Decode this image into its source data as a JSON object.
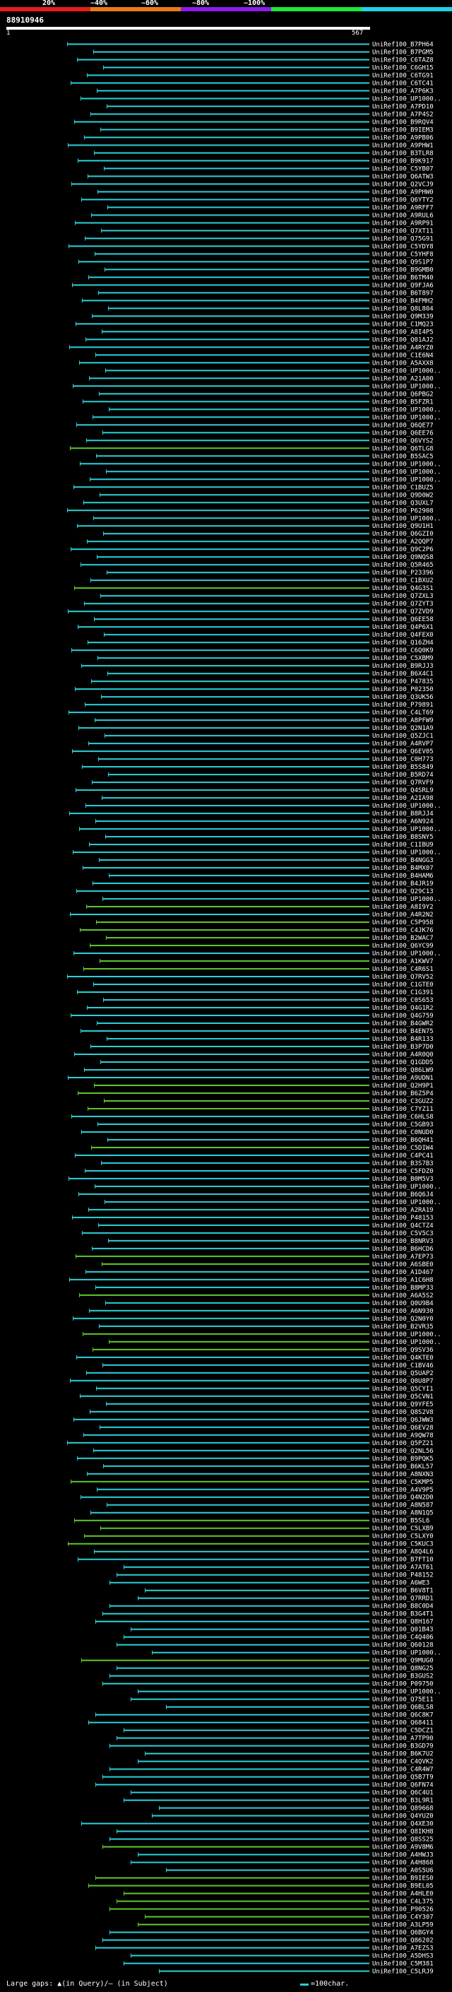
{
  "scale": {
    "labels": [
      "20%",
      "~40%",
      "~60%",
      "~80%",
      "~100%"
    ],
    "colors": [
      "#e81c1c",
      "#e87a1c",
      "#8c1ce8",
      "#1ce83a",
      "#1cd4e8"
    ]
  },
  "query": {
    "id": "88910946",
    "start": "1",
    "end": "567"
  },
  "hit_colors": {
    "cyan": "#2bd1d8",
    "green": "#5ec92a",
    "navy": "#1e2c7a"
  },
  "hits": [
    {
      "label": "UniRef100_B7PH64",
      "color": "cyan"
    },
    {
      "label": "UniRef100_B7PGM5",
      "color": "cyan"
    },
    {
      "label": "UniRef100_C6TAZ8",
      "color": "cyan"
    },
    {
      "label": "UniRef100_C6GH15",
      "color": "cyan"
    },
    {
      "label": "UniRef100_C6TG91",
      "color": "cyan"
    },
    {
      "label": "UniRef100_C6TC41",
      "color": "cyan"
    },
    {
      "label": "UniRef100_A7P6K3",
      "color": "cyan"
    },
    {
      "label": "UniRef100_UP1000..",
      "color": "cyan"
    },
    {
      "label": "UniRef100_A7PD10",
      "color": "cyan"
    },
    {
      "label": "UniRef100_A7P4S2",
      "color": "cyan"
    },
    {
      "label": "UniRef100_B9RQV4",
      "color": "cyan"
    },
    {
      "label": "UniRef100_B9IEM3",
      "color": "cyan"
    },
    {
      "label": "UniRef100_A9PB06",
      "color": "cyan"
    },
    {
      "label": "UniRef100_A9PHW1",
      "color": "cyan"
    },
    {
      "label": "UniRef100_B3TLR8",
      "color": "cyan"
    },
    {
      "label": "UniRef100_B9K917",
      "color": "cyan"
    },
    {
      "label": "UniRef100_C5YB07",
      "color": "cyan"
    },
    {
      "label": "UniRef100_Q6ATW3",
      "color": "cyan"
    },
    {
      "label": "UniRef100_Q2VCJ9",
      "color": "cyan"
    },
    {
      "label": "UniRef100_A9PHW0",
      "color": "cyan"
    },
    {
      "label": "UniRef100_Q6YTY2",
      "color": "cyan"
    },
    {
      "label": "UniRef100_A9RFF7",
      "color": "cyan"
    },
    {
      "label": "UniRef100_A9RUL6",
      "color": "cyan"
    },
    {
      "label": "UniRef100_A9RP91",
      "color": "cyan"
    },
    {
      "label": "UniRef100_Q7XT11",
      "color": "cyan"
    },
    {
      "label": "UniRef100_Q75G91",
      "color": "cyan"
    },
    {
      "label": "UniRef100_C5YDY8",
      "color": "cyan"
    },
    {
      "label": "UniRef100_C5YHF8",
      "color": "cyan"
    },
    {
      "label": "UniRef100_Q9S1P7",
      "color": "cyan"
    },
    {
      "label": "UniRef100_B9GMB0",
      "color": "cyan"
    },
    {
      "label": "UniRef100_B6TM40",
      "color": "cyan"
    },
    {
      "label": "UniRef100_Q9FJA6",
      "color": "cyan"
    },
    {
      "label": "UniRef100_B6T897",
      "color": "cyan"
    },
    {
      "label": "UniRef100_B4FMH2",
      "color": "cyan"
    },
    {
      "label": "UniRef100_Q8L804",
      "color": "cyan"
    },
    {
      "label": "UniRef100_Q9M339",
      "color": "cyan"
    },
    {
      "label": "UniRef100_C1MQ23",
      "color": "cyan"
    },
    {
      "label": "UniRef100_A8I4P5",
      "color": "cyan"
    },
    {
      "label": "UniRef100_Q01AJ2",
      "color": "cyan"
    },
    {
      "label": "UniRef100_A4RYZ0",
      "color": "cyan"
    },
    {
      "label": "UniRef100_C1E6N4",
      "color": "cyan"
    },
    {
      "label": "UniRef100_A5AXX8",
      "color": "cyan"
    },
    {
      "label": "UniRef100_UP1000..",
      "color": "cyan"
    },
    {
      "label": "UniRef100_A21A00",
      "color": "cyan"
    },
    {
      "label": "UniRef100_UP1000..",
      "color": "cyan"
    },
    {
      "label": "UniRef100_Q6PBG2",
      "color": "cyan"
    },
    {
      "label": "UniRef100_B5FZR1",
      "color": "cyan"
    },
    {
      "label": "UniRef100_UP1000..",
      "color": "cyan"
    },
    {
      "label": "UniRef100_UP1000..",
      "color": "cyan"
    },
    {
      "label": "UniRef100_Q6QE77",
      "color": "cyan"
    },
    {
      "label": "UniRef100_Q6EE76",
      "color": "cyan"
    },
    {
      "label": "UniRef100_Q6VYS2",
      "color": "cyan"
    },
    {
      "label": "UniRef100_Q6TLG8",
      "color": "green"
    },
    {
      "label": "UniRef100_B5SAC5",
      "color": "cyan"
    },
    {
      "label": "UniRef100_UP1000..",
      "color": "cyan"
    },
    {
      "label": "UniRef100_UP1000..",
      "color": "cyan"
    },
    {
      "label": "UniRef100_UP1000..",
      "color": "cyan"
    },
    {
      "label": "UniRef100_C1BUZ5",
      "color": "cyan"
    },
    {
      "label": "UniRef100_Q9D0W2",
      "color": "cyan"
    },
    {
      "label": "UniRef100_Q3UXL7",
      "color": "cyan"
    },
    {
      "label": "UniRef100_P62908",
      "color": "cyan"
    },
    {
      "label": "UniRef100_UP1000..",
      "color": "cyan"
    },
    {
      "label": "UniRef100_Q9U1H1",
      "color": "cyan"
    },
    {
      "label": "UniRef100_Q6GZI0",
      "color": "cyan"
    },
    {
      "label": "UniRef100_A2QQP7",
      "color": "cyan"
    },
    {
      "label": "UniRef100_Q9C2P6",
      "color": "cyan"
    },
    {
      "label": "UniRef100_Q9NQS8",
      "color": "cyan"
    },
    {
      "label": "UniRef100_Q5R465",
      "color": "cyan"
    },
    {
      "label": "UniRef100_P23396",
      "color": "cyan"
    },
    {
      "label": "UniRef100_C1BXU2",
      "color": "cyan"
    },
    {
      "label": "UniRef100_Q4G3S1",
      "color": "green"
    },
    {
      "label": "UniRef100_Q7ZXL3",
      "color": "cyan"
    },
    {
      "label": "UniRef100_Q7ZYT3",
      "color": "cyan"
    },
    {
      "label": "UniRef100_Q7ZVD9",
      "color": "cyan"
    },
    {
      "label": "UniRef100_Q6EE58",
      "color": "cyan"
    },
    {
      "label": "UniRef100_Q4P6X1",
      "color": "cyan"
    },
    {
      "label": "UniRef100_Q4FEX0",
      "color": "cyan"
    },
    {
      "label": "UniRef100_Q16ZH4",
      "color": "cyan"
    },
    {
      "label": "UniRef100_C6Q0K9",
      "color": "cyan"
    },
    {
      "label": "UniRef100_C5XBM9",
      "color": "cyan"
    },
    {
      "label": "UniRef100_B9RJJ3",
      "color": "cyan"
    },
    {
      "label": "UniRef100_B6X4C1",
      "color": "cyan"
    },
    {
      "label": "UniRef100_P47835",
      "color": "cyan"
    },
    {
      "label": "UniRef100_P02350",
      "color": "cyan"
    },
    {
      "label": "UniRef100_Q3UK56",
      "color": "cyan"
    },
    {
      "label": "UniRef100_P79891",
      "color": "cyan"
    },
    {
      "label": "UniRef100_C4LT69",
      "color": "cyan"
    },
    {
      "label": "UniRef100_A8PFW9",
      "color": "cyan"
    },
    {
      "label": "UniRef100_Q2N1A9",
      "color": "cyan"
    },
    {
      "label": "UniRef100_Q5ZJC1",
      "color": "cyan"
    },
    {
      "label": "UniRef100_A4RVP7",
      "color": "cyan"
    },
    {
      "label": "UniRef100_Q6EV05",
      "color": "cyan"
    },
    {
      "label": "UniRef100_C0H773",
      "color": "cyan"
    },
    {
      "label": "UniRef100_B5S849",
      "color": "cyan"
    },
    {
      "label": "UniRef100_B5RD74",
      "color": "cyan"
    },
    {
      "label": "UniRef100_Q7RVF9",
      "color": "cyan"
    },
    {
      "label": "UniRef100_Q4SRL9",
      "color": "cyan"
    },
    {
      "label": "UniRef100_A2IA98",
      "color": "cyan"
    },
    {
      "label": "UniRef100_UP1000..",
      "color": "cyan"
    },
    {
      "label": "UniRef100_B8RJJ4",
      "color": "cyan"
    },
    {
      "label": "UniRef100_A6N924",
      "color": "cyan"
    },
    {
      "label": "UniRef100_UP1000..",
      "color": "cyan"
    },
    {
      "label": "UniRef100_B8SNY5",
      "color": "cyan"
    },
    {
      "label": "UniRef100_C1IBU9",
      "color": "cyan"
    },
    {
      "label": "UniRef100_UP1000..",
      "color": "cyan"
    },
    {
      "label": "UniRef100_B4NGG3",
      "color": "cyan"
    },
    {
      "label": "UniRef100_B4MX07",
      "color": "cyan"
    },
    {
      "label": "UniRef100_B4HAM6",
      "color": "cyan"
    },
    {
      "label": "UniRef100_B4JR19",
      "color": "cyan"
    },
    {
      "label": "UniRef100_Q29C13",
      "color": "cyan"
    },
    {
      "label": "UniRef100_UP1000..",
      "color": "cyan"
    },
    {
      "label": "UniRef100_A8I9Y2",
      "color": "green"
    },
    {
      "label": "UniRef100_A4R2N2",
      "color": "cyan"
    },
    {
      "label": "UniRef100_C5P958",
      "color": "green"
    },
    {
      "label": "UniRef100_C4JK76",
      "color": "green"
    },
    {
      "label": "UniRef100_B2WAC7",
      "color": "green"
    },
    {
      "label": "UniRef100_Q6YC99",
      "color": "green"
    },
    {
      "label": "UniRef100_UP1000..",
      "color": "cyan"
    },
    {
      "label": "UniRef100_A1KWV7",
      "color": "green"
    },
    {
      "label": "UniRef100_C4R6S1",
      "color": "green"
    },
    {
      "label": "UniRef100_Q7RV52",
      "color": "cyan"
    },
    {
      "label": "UniRef100_C1GTE0",
      "color": "cyan"
    },
    {
      "label": "UniRef100_C1G391",
      "color": "cyan"
    },
    {
      "label": "UniRef100_C0S653",
      "color": "cyan"
    },
    {
      "label": "UniRef100_Q4G1R2",
      "color": "cyan"
    },
    {
      "label": "UniRef100_Q4G759",
      "color": "cyan"
    },
    {
      "label": "UniRef100_B4GWR2",
      "color": "cyan"
    },
    {
      "label": "UniRef100_B4EN75",
      "color": "cyan"
    },
    {
      "label": "UniRef100_B4R133",
      "color": "cyan"
    },
    {
      "label": "UniRef100_B3P7D0",
      "color": "cyan"
    },
    {
      "label": "UniRef100_A4R0Q0",
      "color": "cyan"
    },
    {
      "label": "UniRef100_Q1GDD5",
      "color": "cyan"
    },
    {
      "label": "UniRef100_Q86LW9",
      "color": "cyan"
    },
    {
      "label": "UniRef100_A9UDN1",
      "color": "cyan"
    },
    {
      "label": "UniRef100_Q2H9P1",
      "color": "green"
    },
    {
      "label": "UniRef100_B6Z5P4",
      "color": "green"
    },
    {
      "label": "UniRef100_C3GUZ2",
      "color": "green"
    },
    {
      "label": "UniRef100_C7YZ11",
      "color": "green"
    },
    {
      "label": "UniRef100_C6HLS8",
      "color": "cyan"
    },
    {
      "label": "UniRef100_C5GB93",
      "color": "cyan"
    },
    {
      "label": "UniRef100_C0NUD0",
      "color": "cyan"
    },
    {
      "label": "UniRef100_B6QH41",
      "color": "cyan"
    },
    {
      "label": "UniRef100_C5DIW4",
      "color": "green"
    },
    {
      "label": "UniRef100_C4PC41",
      "color": "cyan"
    },
    {
      "label": "UniRef100_B3S7B3",
      "color": "cyan"
    },
    {
      "label": "UniRef100_C5FDZ0",
      "color": "cyan"
    },
    {
      "label": "UniRef100_B0M5V3",
      "color": "cyan"
    },
    {
      "label": "UniRef100_UP1000..",
      "color": "cyan"
    },
    {
      "label": "UniRef100_B6Q6J4",
      "color": "cyan"
    },
    {
      "label": "UniRef100_UP1000..",
      "color": "cyan"
    },
    {
      "label": "UniRef100_A2RA19",
      "color": "cyan"
    },
    {
      "label": "UniRef100_P48153",
      "color": "cyan"
    },
    {
      "label": "UniRef100_Q4CTZ4",
      "color": "cyan"
    },
    {
      "label": "UniRef100_C5V5C3",
      "color": "cyan"
    },
    {
      "label": "UniRef100_B8NRV3",
      "color": "cyan"
    },
    {
      "label": "UniRef100_B6HCD6",
      "color": "cyan"
    },
    {
      "label": "UniRef100_A7EP73",
      "color": "green"
    },
    {
      "label": "UniRef100_A6SBE0",
      "color": "green"
    },
    {
      "label": "UniRef100_A1D467",
      "color": "cyan"
    },
    {
      "label": "UniRef100_A1C6H8",
      "color": "cyan"
    },
    {
      "label": "UniRef100_B8MP33",
      "color": "cyan"
    },
    {
      "label": "UniRef100_A6A5S2",
      "color": "green"
    },
    {
      "label": "UniRef100_Q0U9B4",
      "color": "cyan"
    },
    {
      "label": "UniRef100_A6N930",
      "color": "cyan"
    },
    {
      "label": "UniRef100_Q2N0Y0",
      "color": "cyan"
    },
    {
      "label": "UniRef100_B2VR35",
      "color": "cyan"
    },
    {
      "label": "UniRef100_UP1000..",
      "color": "green"
    },
    {
      "label": "UniRef100_UP1000..",
      "color": "green"
    },
    {
      "label": "UniRef100_Q9SV36",
      "color": "green"
    },
    {
      "label": "UniRef100_Q4KTE0",
      "color": "cyan"
    },
    {
      "label": "UniRef100_C1BV46",
      "color": "cyan"
    },
    {
      "label": "UniRef100_Q5UAP2",
      "color": "cyan"
    },
    {
      "label": "UniRef100_Q0U8P7",
      "color": "cyan"
    },
    {
      "label": "UniRef100_Q5CYI1",
      "color": "cyan"
    },
    {
      "label": "UniRef100_Q5CVN1",
      "color": "cyan"
    },
    {
      "label": "UniRef100_Q9YFE5",
      "color": "cyan"
    },
    {
      "label": "UniRef100_Q8S2V8",
      "color": "cyan"
    },
    {
      "label": "UniRef100_Q6JWW3",
      "color": "cyan"
    },
    {
      "label": "UniRef100_Q6EV28",
      "color": "cyan"
    },
    {
      "label": "UniRef100_A9QW78",
      "color": "cyan"
    },
    {
      "label": "UniRef100_Q5PZ21",
      "color": "cyan"
    },
    {
      "label": "UniRef100_Q2NL56",
      "color": "cyan"
    },
    {
      "label": "UniRef100_B9PQK5",
      "color": "cyan"
    },
    {
      "label": "UniRef100_B6KL57",
      "color": "cyan"
    },
    {
      "label": "UniRef100_A8NXN3",
      "color": "cyan"
    },
    {
      "label": "UniRef100_C5KMP5",
      "color": "green"
    },
    {
      "label": "UniRef100_A4V9P5",
      "color": "cyan"
    },
    {
      "label": "UniRef100_Q4N2D0",
      "color": "cyan"
    },
    {
      "label": "UniRef100_A8N587",
      "color": "cyan"
    },
    {
      "label": "UniRef100_A8N1Q5",
      "color": "cyan"
    },
    {
      "label": "UniRef100_B5SL6",
      "color": "green"
    },
    {
      "label": "UniRef100_C5LXB9",
      "color": "green"
    },
    {
      "label": "UniRef100_C5LXY0",
      "color": "green"
    },
    {
      "label": "UniRef100_C5KUC3",
      "color": "green"
    },
    {
      "label": "UniRef100_A8Q4L6",
      "color": "cyan"
    },
    {
      "label": "UniRef100_B7FT10",
      "color": "cyan"
    },
    {
      "label": "UniRef100_A7AT61",
      "color": "cyan"
    },
    {
      "label": "UniRef100_P48152",
      "color": "cyan"
    },
    {
      "label": "UniRef100_A6WE3",
      "color": "cyan"
    },
    {
      "label": "UniRef100_B6V8T1",
      "color": "cyan"
    },
    {
      "label": "UniRef100_Q7RRD1",
      "color": "cyan"
    },
    {
      "label": "UniRef100_B8C0D4",
      "color": "cyan"
    },
    {
      "label": "UniRef100_B3G4T1",
      "color": "cyan"
    },
    {
      "label": "UniRef100_Q8H167",
      "color": "cyan"
    },
    {
      "label": "UniRef100_Q01B43",
      "color": "cyan"
    },
    {
      "label": "UniRef100_C4Q406",
      "color": "cyan"
    },
    {
      "label": "UniRef100_Q60128",
      "color": "cyan"
    },
    {
      "label": "UniRef100_UP1000..",
      "color": "cyan"
    },
    {
      "label": "UniRef100_Q9MUG0",
      "color": "green"
    },
    {
      "label": "UniRef100_Q8NG25",
      "color": "cyan"
    },
    {
      "label": "UniRef100_B3GUS2",
      "color": "cyan"
    },
    {
      "label": "UniRef100_P09750",
      "color": "cyan"
    },
    {
      "label": "UniRef100_UP1000..",
      "color": "cyan"
    },
    {
      "label": "UniRef100_Q75E11",
      "color": "cyan"
    },
    {
      "label": "UniRef100_Q6BLS8",
      "color": "cyan"
    },
    {
      "label": "UniRef100_Q6C8K7",
      "color": "cyan"
    },
    {
      "label": "UniRef100_Q68411",
      "color": "cyan"
    },
    {
      "label": "UniRef100_C5DCZ1",
      "color": "cyan"
    },
    {
      "label": "UniRef100_A7TP90",
      "color": "cyan"
    },
    {
      "label": "UniRef100_B3GD79",
      "color": "cyan"
    },
    {
      "label": "UniRef100_B6K7U2",
      "color": "cyan"
    },
    {
      "label": "UniRef100_C4QVK2",
      "color": "cyan"
    },
    {
      "label": "UniRef100_C4R4W7",
      "color": "cyan"
    },
    {
      "label": "UniRef100_Q5B7T9",
      "color": "cyan"
    },
    {
      "label": "UniRef100_Q6FN74",
      "color": "cyan"
    },
    {
      "label": "UniRef100_Q6C4U1",
      "color": "cyan"
    },
    {
      "label": "UniRef100_B3L9R1",
      "color": "cyan"
    },
    {
      "label": "UniRef100_Q89668",
      "color": "cyan"
    },
    {
      "label": "UniRef100_Q4YUZ0",
      "color": "cyan"
    },
    {
      "label": "UniRef100_Q4XE30",
      "color": "cyan"
    },
    {
      "label": "UniRef100_Q8IKH8",
      "color": "cyan"
    },
    {
      "label": "UniRef100_Q8SS25",
      "color": "cyan"
    },
    {
      "label": "UniRef100_A9V8M6",
      "color": "green"
    },
    {
      "label": "UniRef100_A4HWJ3",
      "color": "cyan"
    },
    {
      "label": "UniRef100_A4H868",
      "color": "cyan"
    },
    {
      "label": "UniRef100_A0S5U6",
      "color": "cyan"
    },
    {
      "label": "UniRef100_B9IES0",
      "color": "green"
    },
    {
      "label": "UniRef100_B9EL05",
      "color": "green"
    },
    {
      "label": "UniRef100_A4HLE0",
      "color": "green"
    },
    {
      "label": "UniRef100_C4L375",
      "color": "green"
    },
    {
      "label": "UniRef100_P90526",
      "color": "green"
    },
    {
      "label": "UniRef100_C4Y307",
      "color": "green"
    },
    {
      "label": "UniRef100_A3LP59",
      "color": "green"
    },
    {
      "label": "UniRef100_Q6BGY4",
      "color": "cyan"
    },
    {
      "label": "UniRef100_Q86202",
      "color": "cyan"
    },
    {
      "label": "UniRef100_A7EZS3",
      "color": "cyan"
    },
    {
      "label": "UniRef100_A5DHS3",
      "color": "cyan"
    },
    {
      "label": "UniRef100_C5M381",
      "color": "cyan"
    },
    {
      "label": "UniRef100_C5LRJ9",
      "color": "cyan"
    }
  ],
  "footer": {
    "legend_left": "Large gaps: ▲(in Query)/— (in Subject)",
    "legend_right": "=100char."
  }
}
